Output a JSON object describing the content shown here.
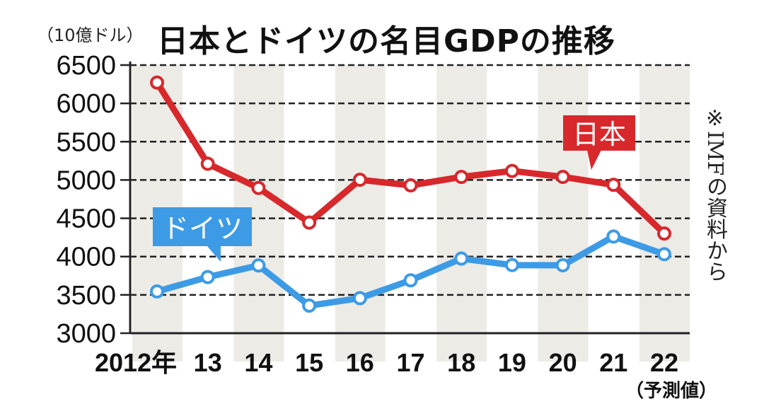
{
  "chart_data": {
    "type": "line",
    "title": "日本とドイツの名目GDPの推移",
    "ylabel": "（10億ドル）",
    "xlabel": "",
    "categories": [
      "2012年",
      "13",
      "14",
      "15",
      "16",
      "17",
      "18",
      "19",
      "20",
      "21",
      "22"
    ],
    "x_note": "（予測値）",
    "yticks": [
      3000,
      3500,
      4000,
      4500,
      5000,
      5500,
      6000,
      6500
    ],
    "ylim": [
      3000,
      6500
    ],
    "grid": true,
    "series": [
      {
        "name": "日本",
        "color": "#d7282c",
        "values": [
          6272,
          5212,
          4896,
          4444,
          5003,
          4930,
          5040,
          5118,
          5040,
          4937,
          4301
        ]
      },
      {
        "name": "ドイツ",
        "color": "#3d9be6",
        "values": [
          3545,
          3733,
          3884,
          3360,
          3457,
          3690,
          3974,
          3889,
          3887,
          4262,
          4031
        ]
      }
    ],
    "source_note": "※IMFの資料から"
  }
}
